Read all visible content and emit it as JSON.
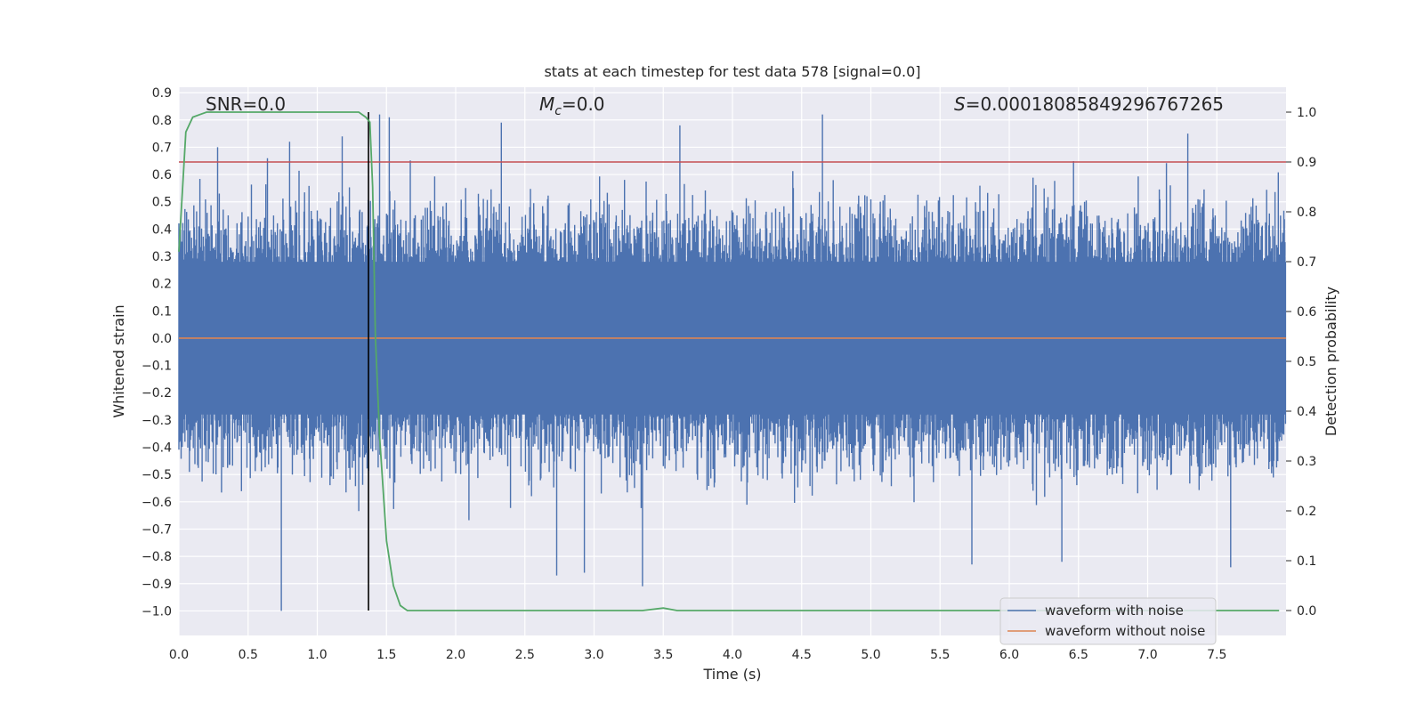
{
  "chart_data": {
    "type": "line",
    "title": "stats at each timestep for test data 578 [signal=0.0]",
    "xlabel": "Time (s)",
    "ylabel": "Whitened strain",
    "ylabel_right": "Detection probability",
    "xlim": [
      0.0,
      8.0
    ],
    "ylim": [
      -1.09,
      0.92
    ],
    "ylim_right": [
      -0.05,
      1.05
    ],
    "x_ticks": [
      "0.0",
      "0.5",
      "1.0",
      "1.5",
      "2.0",
      "2.5",
      "3.0",
      "3.5",
      "4.0",
      "4.5",
      "5.0",
      "5.5",
      "6.0",
      "6.5",
      "7.0",
      "7.5"
    ],
    "y_ticks": [
      "0.9",
      "0.8",
      "0.7",
      "0.6",
      "0.5",
      "0.4",
      "0.3",
      "0.2",
      "0.1",
      "0.0",
      "−0.1",
      "−0.2",
      "−0.3",
      "−0.4",
      "−0.5",
      "−0.6",
      "−0.7",
      "−0.8",
      "−0.9",
      "−1.0"
    ],
    "y_right_ticks": [
      "1.0",
      "0.9",
      "0.8",
      "0.7",
      "0.6",
      "0.5",
      "0.4",
      "0.3",
      "0.2",
      "0.1",
      "0.0"
    ],
    "annotations": {
      "snr": "SNR=0.0",
      "mc_symbol": "M",
      "mc_sub": "c",
      "mc_value": "=0.0",
      "s_symbol": "S",
      "s_value": "=0.00018085849296767265"
    },
    "legend": {
      "position": "lower-right",
      "entries": [
        "waveform with noise",
        "waveform without noise"
      ]
    },
    "series": [
      {
        "name": "waveform with noise",
        "color": "#4c72b0",
        "kind": "noise",
        "sample_rate": 250,
        "envelope_typical": 0.28,
        "spikes": [
          {
            "x": 0.74,
            "y": -1.0
          },
          {
            "x": 0.8,
            "y": 0.72
          },
          {
            "x": 0.28,
            "y": 0.7
          },
          {
            "x": 1.18,
            "y": 0.74
          },
          {
            "x": 1.45,
            "y": 0.82
          },
          {
            "x": 1.52,
            "y": 0.81
          },
          {
            "x": 2.33,
            "y": 0.79
          },
          {
            "x": 3.35,
            "y": -0.91
          },
          {
            "x": 3.62,
            "y": 0.78
          },
          {
            "x": 4.65,
            "y": 0.82
          },
          {
            "x": 5.73,
            "y": -0.83
          },
          {
            "x": 6.38,
            "y": -0.82
          },
          {
            "x": 7.29,
            "y": 0.75
          },
          {
            "x": 7.6,
            "y": -0.84
          },
          {
            "x": 2.73,
            "y": -0.87
          },
          {
            "x": 2.93,
            "y": -0.86
          }
        ]
      },
      {
        "name": "waveform without noise",
        "color": "#dd8452",
        "kind": "line",
        "x": [
          0.0,
          8.0
        ],
        "y": [
          0.0,
          0.0
        ]
      },
      {
        "name": "detection probability",
        "color": "#55a868",
        "axis": "right",
        "kind": "line",
        "x": [
          0.0,
          0.05,
          0.1,
          0.15,
          0.2,
          0.4,
          0.6,
          0.8,
          1.0,
          1.2,
          1.3,
          1.35,
          1.38,
          1.4,
          1.42,
          1.45,
          1.5,
          1.55,
          1.6,
          1.65,
          2.0,
          2.5,
          3.0,
          3.35,
          3.5,
          3.6,
          4.0,
          5.0,
          6.0,
          7.0,
          7.95
        ],
        "y": [
          0.72,
          0.96,
          0.99,
          0.995,
          1.0,
          1.0,
          1.0,
          1.0,
          1.0,
          1.0,
          1.0,
          0.99,
          0.98,
          0.85,
          0.55,
          0.35,
          0.14,
          0.05,
          0.01,
          0.0,
          0.0,
          0.0,
          0.0,
          0.0,
          0.005,
          0.0,
          0.0,
          0.0,
          0.0,
          0.0,
          0.0
        ]
      }
    ],
    "threshold": {
      "y_right": 0.9,
      "color": "#c44e52"
    },
    "vline": {
      "x": 1.37,
      "color": "#000000"
    }
  }
}
